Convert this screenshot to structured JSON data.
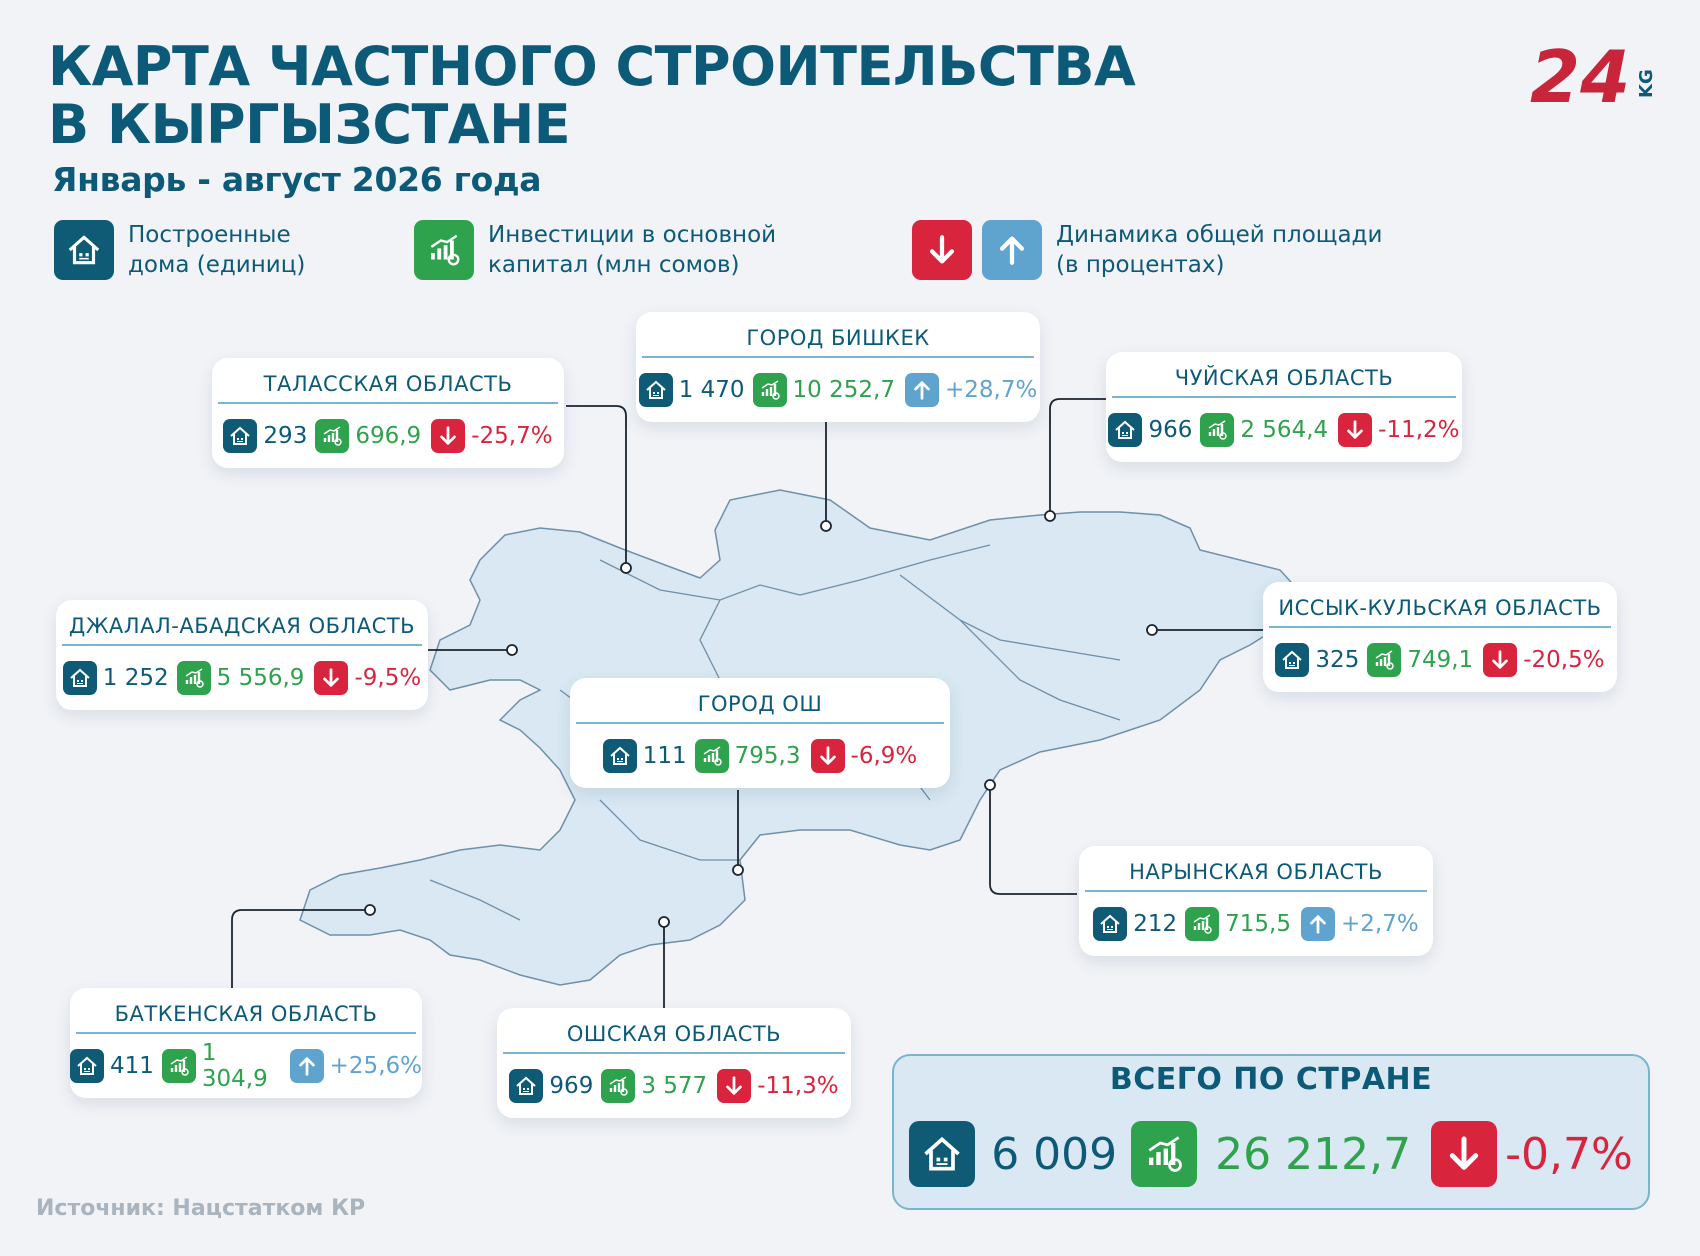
{
  "title_line1": "КАРТА ЧАСТНОГО СТРОИТЕЛЬСТВА",
  "title_line2": "В КЫРГЫЗСТАНЕ",
  "subtitle": "Январь - август 2026 года",
  "logo_text": "24",
  "logo_suffix": "KG",
  "legend": {
    "houses": "Построенные\nдома (единиц)",
    "houses_l1": "Построенные",
    "houses_l2": "дома (единиц)",
    "invest_l1": "Инвестиции в основной",
    "invest_l2": "капитал (млн сомов)",
    "dyn_l1": "Динамика общей площади",
    "dyn_l2": "(в процентах)"
  },
  "colors": {
    "brand": "#0d5a78",
    "green": "#2ea24c",
    "red": "#d9243d",
    "blue": "#5fa4cf",
    "map_fill": "#d9e8f2"
  },
  "icons": {
    "houses": "house-icon",
    "invest": "money-growth-icon",
    "down": "arrow-down-icon",
    "up": "arrow-up-icon"
  },
  "regions": [
    {
      "key": "talas",
      "name": "ТАЛАССКАЯ ОБЛАСТЬ",
      "houses": "293",
      "invest": "696,9",
      "dynamics": "-25,7%",
      "trend": "down"
    },
    {
      "key": "bishkek",
      "name": "ГОРОД БИШКЕК",
      "houses": "1 470",
      "invest": "10 252,7",
      "dynamics": "+28,7%",
      "trend": "up"
    },
    {
      "key": "chui",
      "name": "ЧУЙСКАЯ ОБЛАСТЬ",
      "houses": "966",
      "invest": "2 564,4",
      "dynamics": "-11,2%",
      "trend": "down"
    },
    {
      "key": "jalalabad",
      "name": "ДЖАЛАЛ-АБАДСКАЯ ОБЛАСТЬ",
      "houses": "1 252",
      "invest": "5 556,9",
      "dynamics": "-9,5%",
      "trend": "down"
    },
    {
      "key": "issykkul",
      "name": "ИССЫК-КУЛЬСКАЯ ОБЛАСТЬ",
      "houses": "325",
      "invest": "749,1",
      "dynamics": "-20,5%",
      "trend": "down"
    },
    {
      "key": "osh_city",
      "name": "ГОРОД ОШ",
      "houses": "111",
      "invest": "795,3",
      "dynamics": "-6,9%",
      "trend": "down"
    },
    {
      "key": "naryn",
      "name": "НАРЫНСКАЯ  ОБЛАСТЬ",
      "houses": "212",
      "invest": "715,5",
      "dynamics": "+2,7%",
      "trend": "up"
    },
    {
      "key": "batken",
      "name": "БАТКЕНСКАЯ ОБЛАСТЬ",
      "houses": "411",
      "invest": "1 304,9",
      "dynamics": "+25,6%",
      "trend": "up"
    },
    {
      "key": "osh_region",
      "name": "ОШСКАЯ  ОБЛАСТЬ",
      "houses": "969",
      "invest": "3 577",
      "dynamics": "-11,3%",
      "trend": "down"
    }
  ],
  "total": {
    "title": "ВСЕГО ПО СТРАНЕ",
    "houses": "6 009",
    "invest": "26 212,7",
    "dynamics": "-0,7%",
    "trend": "down"
  },
  "source": "Источник: Нацстатком КР"
}
